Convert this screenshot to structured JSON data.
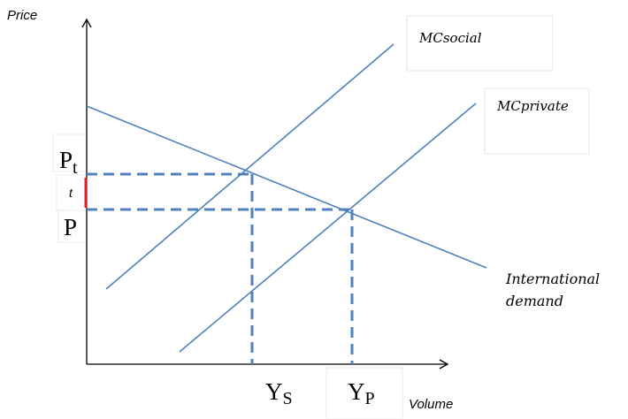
{
  "axes": {
    "y_label": "Price",
    "x_label": "Volume"
  },
  "curves": {
    "mc_social": "MCsocial",
    "mc_private": "MCprivate",
    "demand_line1": "International",
    "demand_line2": "demand"
  },
  "levels": {
    "pt_main": "P",
    "pt_sub": "t",
    "p": "P",
    "tax": "t",
    "ys_main": "Y",
    "ys_sub": "S",
    "yp_main": "Y",
    "yp_sub": "P"
  },
  "colors": {
    "line": "#4f81bd",
    "dashed": "#4f81bd",
    "axis": "#000000",
    "tax_marker": "#e02020",
    "box_border": "#e4e4e4"
  }
}
